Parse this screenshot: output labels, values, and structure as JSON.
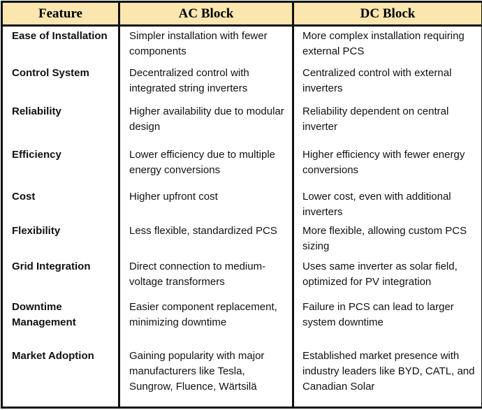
{
  "headers": {
    "feature": "Feature",
    "ac": "AC Block",
    "dc": "DC Block"
  },
  "rows": [
    {
      "feature": "Ease of Installation",
      "ac": "Simpler installation with fewer components",
      "dc": "More complex installation requiring external PCS"
    },
    {
      "feature": "Control System",
      "ac": "Decentralized control with integrated string inverters",
      "dc": "Centralized control with external inverters"
    },
    {
      "feature": "Reliability",
      "ac": "Higher availability due to modular design",
      "dc": "Reliability dependent on central inverter"
    },
    {
      "feature": "Efficiency",
      "ac": "Lower efficiency due to multiple energy conversions",
      "dc": "Higher efficiency with fewer energy conversions"
    },
    {
      "feature": "Cost",
      "ac": "Higher upfront cost",
      "dc": "Lower cost, even with additional inverters"
    },
    {
      "feature": "Flexibility",
      "ac": "Less flexible, standardized PCS",
      "dc": "More flexible, allowing custom PCS sizing"
    },
    {
      "feature": "Grid Integration",
      "ac": "Direct connection to medium-voltage transformers",
      "dc": "Uses same inverter as solar field, optimized for PV integration"
    },
    {
      "feature": "Downtime Management",
      "ac": "Easier component replacement, minimizing downtime",
      "dc": "Failure in PCS can lead to larger system downtime"
    },
    {
      "feature": "Market Adoption",
      "ac": "Gaining popularity with major manufacturers like Tesla, Sungrow, Fluence, Wärtsilä",
      "dc": "Established market presence with industry leaders like BYD, CATL, and Canadian Solar"
    }
  ]
}
